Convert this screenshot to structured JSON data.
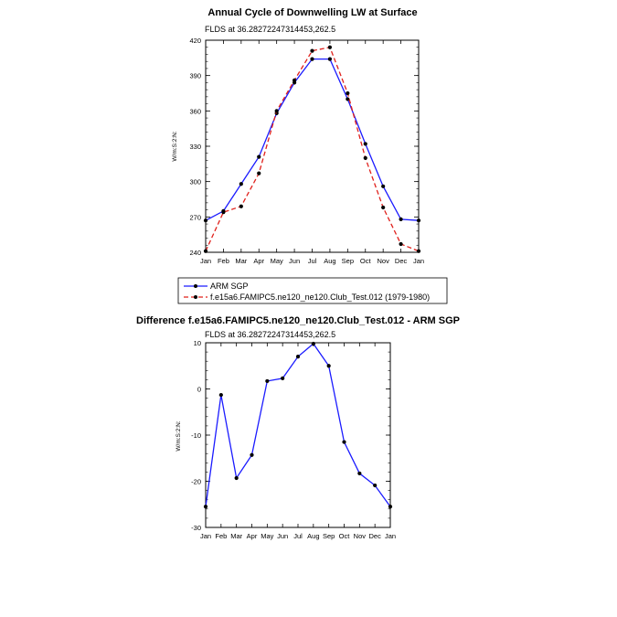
{
  "charts": [
    {
      "title": "Annual Cycle of Downwelling LW at Surface",
      "subtitle": "FLDS at 36.28272247314453,262.5",
      "ylabel": "W/m:S:2:N:"
    },
    {
      "title": "Difference f.e15a6.FAMIPC5.ne120_ne120.Club_Test.012 - ARM SGP",
      "subtitle": "FLDS at 36.28272247314453,262.5",
      "ylabel": "W/m:S:2:N:"
    }
  ],
  "legend": {
    "entries": [
      "ARM SGP",
      "f.e15a6.FAMIPC5.ne120_ne120.Club_Test.012 (1979-1980)"
    ]
  },
  "colors": {
    "obs": "#1a1aff",
    "model": "#e0201b",
    "marker": "#000000",
    "diff": "#1a1aff"
  },
  "chart_data": [
    {
      "type": "line",
      "title": "Annual Cycle of Downwelling LW at Surface",
      "subtitle": "FLDS at 36.28272247314453,262.5",
      "xlabel": "",
      "ylabel": "W/m:S:2:N:",
      "categories": [
        "Jan",
        "Feb",
        "Mar",
        "Apr",
        "May",
        "Jun",
        "Jul",
        "Aug",
        "Sep",
        "Oct",
        "Nov",
        "Dec",
        "Jan"
      ],
      "ylim": [
        240,
        420
      ],
      "yticks": [
        240,
        270,
        300,
        330,
        360,
        390,
        420
      ],
      "legend_position": "below",
      "series": [
        {
          "name": "ARM SGP",
          "style": "solid",
          "color": "#1a1aff",
          "values": [
            267,
            275,
            298,
            321,
            358,
            384,
            404,
            404,
            370,
            332,
            296,
            268,
            267
          ]
        },
        {
          "name": "f.e15a6.FAMIPC5.ne120_ne120.Club_Test.012 (1979-1980)",
          "style": "dashed",
          "color": "#e0201b",
          "values": [
            241,
            274,
            279,
            307,
            360,
            386,
            411,
            414,
            375,
            320,
            278,
            247,
            241
          ]
        }
      ]
    },
    {
      "type": "line",
      "title": "Difference f.e15a6.FAMIPC5.ne120_ne120.Club_Test.012 - ARM SGP",
      "subtitle": "FLDS at 36.28272247314453,262.5",
      "xlabel": "",
      "ylabel": "W/m:S:2:N:",
      "categories": [
        "Jan",
        "Feb",
        "Mar",
        "Apr",
        "May",
        "Jun",
        "Jul",
        "Aug",
        "Sep",
        "Oct",
        "Nov",
        "Dec",
        "Jan"
      ],
      "ylim": [
        -30,
        10
      ],
      "yticks": [
        -30,
        -20,
        -10,
        0,
        10
      ],
      "series": [
        {
          "color": "#1a1aff",
          "values": [
            -25.5,
            -1.3,
            -19.3,
            -14.3,
            1.7,
            2.3,
            7.0,
            9.8,
            5.0,
            -11.5,
            -18.3,
            -20.9,
            -25.5
          ]
        }
      ]
    }
  ]
}
